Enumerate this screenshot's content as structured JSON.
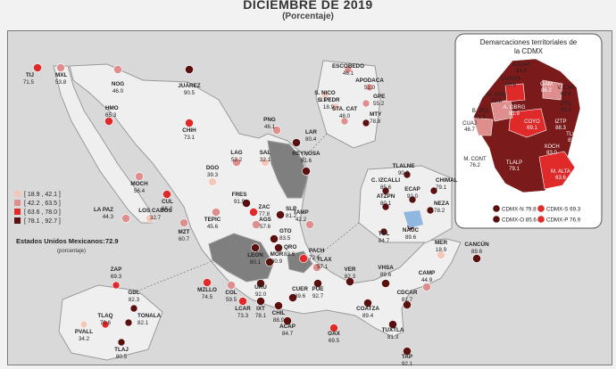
{
  "header": {
    "title": "DICIEMBRE DE 2019",
    "subtitle": "(Porcentaje)"
  },
  "colors": {
    "bin1": "#f4c7b9",
    "bin2": "#df8e8e",
    "bin3": "#e02a2a",
    "bin4": "#5b1010",
    "neutral_state": "#efefef",
    "highlight_state": "#7f7f7f",
    "highlight_blue": "#8fb7e0"
  },
  "legend": {
    "bins": [
      {
        "label": "[ 18.9 , 42.1 ]",
        "color": "#f4c7b9"
      },
      {
        "label": "[ 42.2 , 63.5 ]",
        "color": "#df8e8e"
      },
      {
        "label": "[ 63.6 , 78.0 ]",
        "color": "#e02a2a"
      },
      {
        "label": "[ 78.1 , 92.7 ]",
        "color": "#5b1010"
      }
    ],
    "national_label": "Estados Unidos Mexicanos:",
    "national_value": "72.9",
    "national_unit": "(porcentaje)"
  },
  "cities": [
    {
      "name": "TIJ",
      "value": "71.5",
      "bin": 3
    },
    {
      "name": "MXL",
      "value": "53.8",
      "bin": 2
    },
    {
      "name": "NOG",
      "value": "46.0",
      "bin": 2
    },
    {
      "name": "JUÁREZ",
      "value": "90.5",
      "bin": 4
    },
    {
      "name": "HMO",
      "value": "65.3",
      "bin": 3
    },
    {
      "name": "CHIH",
      "value": "73.1",
      "bin": 3
    },
    {
      "name": "MOCH",
      "value": "56.4",
      "bin": 2
    },
    {
      "name": "CUL",
      "value": "66.2",
      "bin": 3
    },
    {
      "name": "LA PAZ",
      "value": "44.3",
      "bin": 2
    },
    {
      "name": "LOS CABOS",
      "value": "32.7",
      "bin": 1
    },
    {
      "name": "MZT",
      "value": "60.7",
      "bin": 2
    },
    {
      "name": "DGO",
      "value": "39.3",
      "bin": 1
    },
    {
      "name": "TEPIC",
      "value": "45.6",
      "bin": 2
    },
    {
      "name": "LAG",
      "value": "52.2",
      "bin": 2
    },
    {
      "name": "FRES",
      "value": "91.9",
      "bin": 4
    },
    {
      "name": "ZAC",
      "value": "77.8",
      "bin": 3
    },
    {
      "name": "AGS",
      "value": "57.6",
      "bin": 2
    },
    {
      "name": "SAL",
      "value": "32.1",
      "bin": 1
    },
    {
      "name": "PNG",
      "value": "46.1",
      "bin": 2
    },
    {
      "name": "LAR",
      "value": "80.4",
      "bin": 4
    },
    {
      "name": "REYNOSA",
      "value": "81.6",
      "bin": 4
    },
    {
      "name": "SLP",
      "value": "81.2",
      "bin": 4
    },
    {
      "name": "LEÓN",
      "value": "80.1",
      "bin": 4
    },
    {
      "name": "GTO",
      "value": "83.5",
      "bin": 4
    },
    {
      "name": "QRO",
      "value": "83.6",
      "bin": 4
    },
    {
      "name": "MOR",
      "value": "80.9",
      "bin": 4
    },
    {
      "name": "TAMP",
      "value": "42.2",
      "bin": 2
    },
    {
      "name": "PACH",
      "value": "72.1",
      "bin": 3
    },
    {
      "name": "TLAX",
      "value": "57.1",
      "bin": 2
    },
    {
      "name": "PUE",
      "value": "92.7",
      "bin": 4
    },
    {
      "name": "VER",
      "value": "82.3",
      "bin": 4
    },
    {
      "name": "MZLLO",
      "value": "74.5",
      "bin": 3
    },
    {
      "name": "COL",
      "value": "59.5",
      "bin": 2
    },
    {
      "name": "URU",
      "value": "92.0",
      "bin": 4
    },
    {
      "name": "LCAR",
      "value": "73.3",
      "bin": 3
    },
    {
      "name": "IXT",
      "value": "78.1",
      "bin": 4
    },
    {
      "name": "CHIL",
      "value": "88.9",
      "bin": 4
    },
    {
      "name": "CUER",
      "value": "89.6",
      "bin": 4
    },
    {
      "name": "ACAP",
      "value": "84.7",
      "bin": 4
    },
    {
      "name": "OAX",
      "value": "69.5",
      "bin": 3
    },
    {
      "name": "VHSA",
      "value": "89.6",
      "bin": 4
    },
    {
      "name": "COATZA",
      "value": "89.4",
      "bin": 4
    },
    {
      "name": "CDCAR",
      "value": "81.7",
      "bin": 4
    },
    {
      "name": "CAMP",
      "value": "44.9",
      "bin": 2
    },
    {
      "name": "MER",
      "value": "18.9",
      "bin": 1
    },
    {
      "name": "CANCÚN",
      "value": "89.6",
      "bin": 4
    },
    {
      "name": "TUXTLA",
      "value": "81.3",
      "bin": 4
    },
    {
      "name": "TAP",
      "value": "92.1",
      "bin": 4
    }
  ],
  "monterrey": [
    {
      "name": "ESCOBEDO",
      "value": "46.1",
      "bin": 2
    },
    {
      "name": "S. NICO",
      "value": "31.7",
      "bin": 1
    },
    {
      "name": "APODACA",
      "value": "51.0",
      "bin": 2
    },
    {
      "name": "S. PEDR",
      "value": "18.9",
      "bin": 1
    },
    {
      "name": "GPE",
      "value": "55.2",
      "bin": 2
    },
    {
      "name": "STA. CAT",
      "value": "48.0",
      "bin": 2
    },
    {
      "name": "MTY",
      "value": "78.8",
      "bin": 4
    }
  ],
  "mexico_valley": [
    {
      "name": "TLALNE",
      "value": "90.9",
      "bin": 4
    },
    {
      "name": "C. IZCALLI",
      "value": "85.6",
      "bin": 4
    },
    {
      "name": "ECAP",
      "value": "92.0",
      "bin": 4
    },
    {
      "name": "CHIMAL",
      "value": "79.1",
      "bin": 4
    },
    {
      "name": "ATZPN",
      "value": "80.1",
      "bin": 4
    },
    {
      "name": "NEZA",
      "value": "78.2",
      "bin": 4
    },
    {
      "name": "TOL",
      "value": "84.7",
      "bin": 4
    },
    {
      "name": "NAUC",
      "value": "89.6",
      "bin": 4
    }
  ],
  "guadalajara": [
    {
      "name": "ZAP",
      "value": "69.3",
      "bin": 3
    },
    {
      "name": "GDL",
      "value": "82.3",
      "bin": 4
    },
    {
      "name": "PVALL",
      "value": "34.2",
      "bin": 1
    },
    {
      "name": "TLAQ",
      "value": "70.6",
      "bin": 3
    },
    {
      "name": "TONALA",
      "value": "82.1",
      "bin": 4
    },
    {
      "name": "TLAJ",
      "value": "80.5",
      "bin": 4
    }
  ],
  "cdmx": {
    "title_line1": "Demarcaciones territoriales de",
    "title_line2": "la CDMX",
    "units": [
      {
        "name": "AZCAP",
        "value": "81.9",
        "bin": 4
      },
      {
        "name": "GAM",
        "value": "86.2",
        "bin": 4
      },
      {
        "name": "CUAUH",
        "value": "80.6",
        "bin": 4
      },
      {
        "name": "V. CAR",
        "value": "62.4",
        "bin": 2
      },
      {
        "name": "M. HGO",
        "value": "70.8",
        "bin": 3
      },
      {
        "name": "IZTC",
        "value": "80.3",
        "bin": 4
      },
      {
        "name": "B. JRZ",
        "value": "51.6",
        "bin": 2
      },
      {
        "name": "A. OBRG",
        "value": "81.9",
        "bin": 4
      },
      {
        "name": "IZTP",
        "value": "88.3",
        "bin": 4
      },
      {
        "name": "CUAJ",
        "value": "46.7",
        "bin": 2
      },
      {
        "name": "COYO",
        "value": "69.1",
        "bin": 3
      },
      {
        "name": "TLHC",
        "value": "83.0",
        "bin": 4
      },
      {
        "name": "XOCH",
        "value": "83.0",
        "bin": 4
      },
      {
        "name": "M. CONT",
        "value": "76.2",
        "bin": 3
      },
      {
        "name": "TLALP",
        "value": "79.1",
        "bin": 4
      },
      {
        "name": "M. ALTA",
        "value": "63.6",
        "bin": 3
      }
    ],
    "regions": [
      {
        "label": "CDMX-N 79.8",
        "bin": 4
      },
      {
        "label": "CDMX-O 85.6",
        "bin": 4
      },
      {
        "label": "CDMX-S 69.3",
        "bin": 3
      },
      {
        "label": "CDMX-P 76.9",
        "bin": 3
      }
    ]
  }
}
